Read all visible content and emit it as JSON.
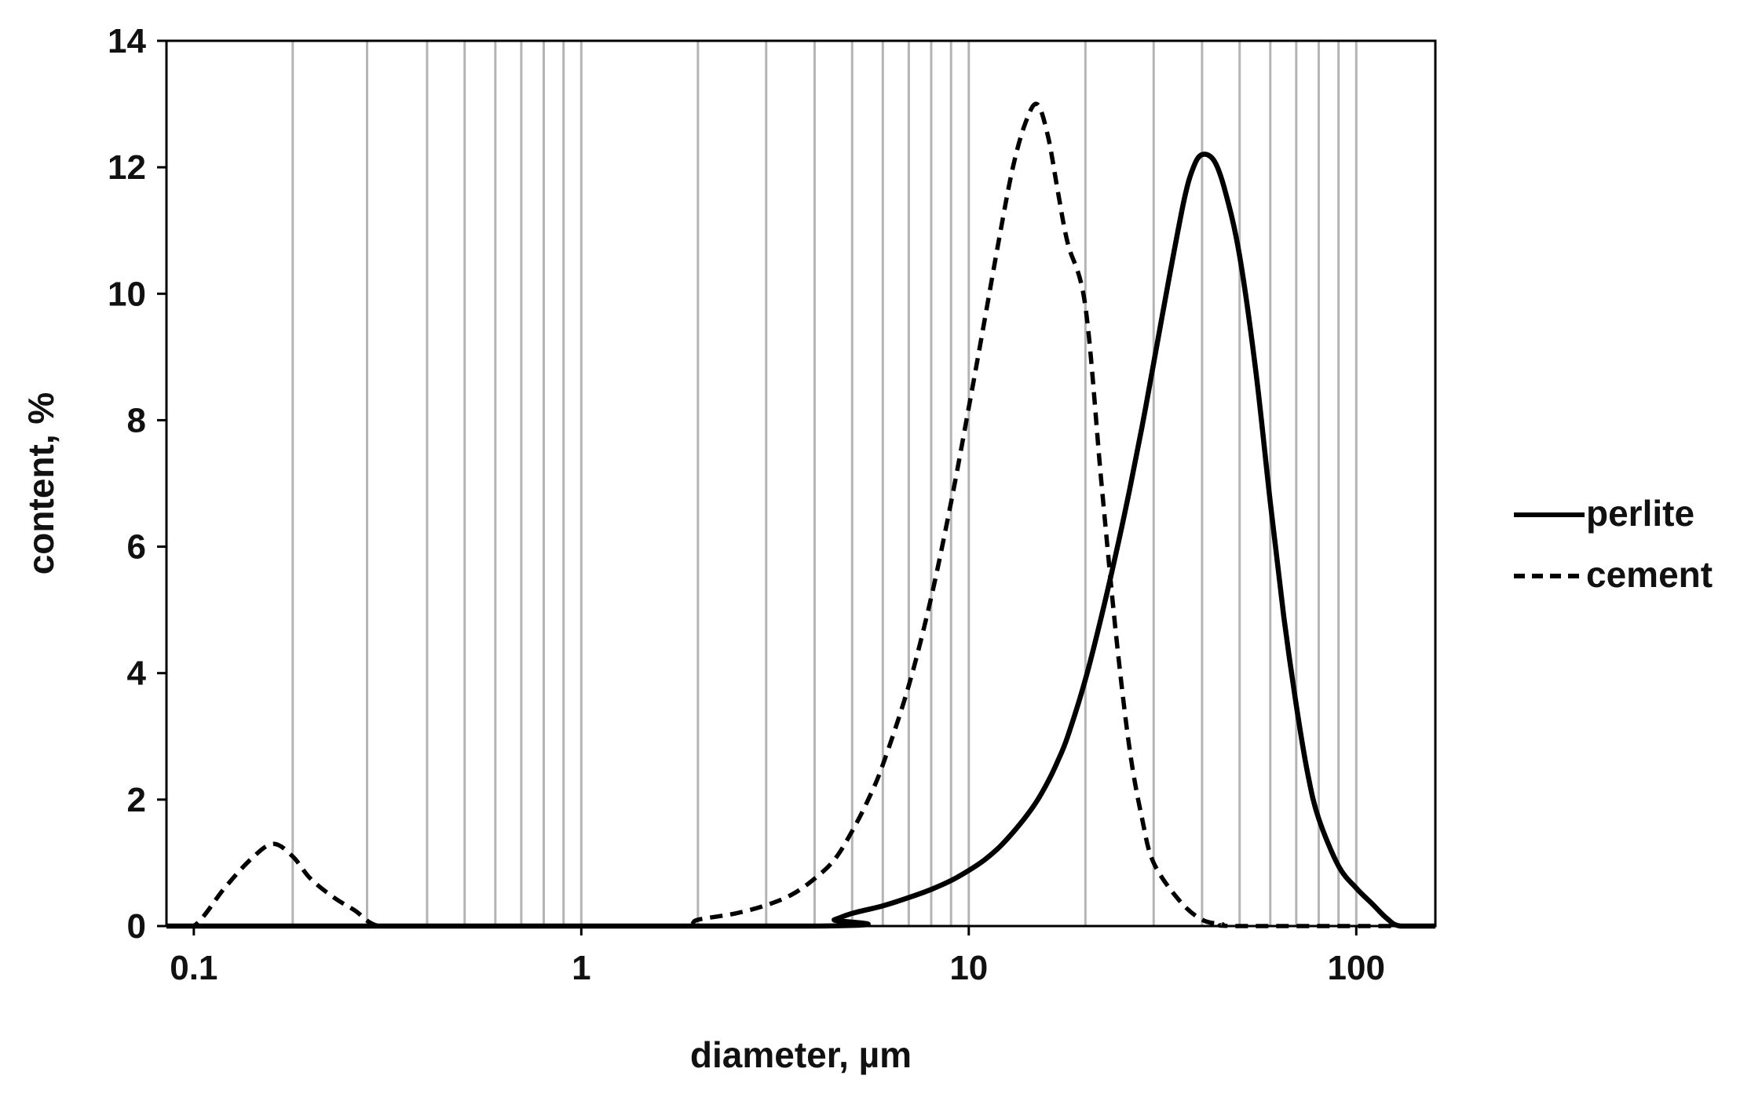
{
  "chart_data": {
    "type": "line",
    "title": "",
    "xlabel": "diameter, µm",
    "ylabel": "content, %",
    "x_scale": "log",
    "xlim": [
      0.085,
      160
    ],
    "ylim": [
      0,
      14
    ],
    "x_ticks": [
      0.1,
      1,
      10,
      100
    ],
    "x_tick_labels": [
      "0.1",
      "1",
      "10",
      "100"
    ],
    "y_ticks": [
      0,
      2,
      4,
      6,
      8,
      10,
      12,
      14
    ],
    "y_tick_labels": [
      "0",
      "2",
      "4",
      "6",
      "8",
      "10",
      "12",
      "14"
    ],
    "x_grid_lines": [
      0.18,
      0.28,
      0.4,
      0.5,
      0.6,
      0.7,
      0.8,
      0.9,
      1,
      2,
      3,
      4,
      5,
      6,
      7,
      8,
      9,
      10,
      20,
      30,
      40,
      50,
      60,
      70,
      80,
      90,
      100
    ],
    "grid": "vertical",
    "legend_position": "right",
    "series": [
      {
        "name": "perlite",
        "style": "solid",
        "color": "#000000",
        "x": [
          0.085,
          4.0,
          4.5,
          5.0,
          6.0,
          7.0,
          8.0,
          9.0,
          10.0,
          11.0,
          12.0,
          13.0,
          14.0,
          15.0,
          16.0,
          17.0,
          18.0,
          20.0,
          22.0,
          24.0,
          26.0,
          28.0,
          30.0,
          33.0,
          36.0,
          38.0,
          40.0,
          43.0,
          46.0,
          50.0,
          55.0,
          60.0,
          65.0,
          70.0,
          75.0,
          80.0,
          90.0,
          100.0,
          110.0,
          120.0,
          130.0,
          160.0
        ],
        "y": [
          0,
          0,
          0.1,
          0.2,
          0.32,
          0.45,
          0.58,
          0.72,
          0.88,
          1.05,
          1.25,
          1.48,
          1.72,
          1.98,
          2.28,
          2.62,
          3.0,
          3.9,
          4.9,
          5.9,
          6.9,
          7.9,
          8.9,
          10.3,
          11.5,
          12.0,
          12.2,
          12.1,
          11.6,
          10.6,
          8.8,
          6.7,
          4.9,
          3.5,
          2.4,
          1.7,
          0.95,
          0.6,
          0.35,
          0.12,
          0,
          0
        ]
      },
      {
        "name": "cement",
        "style": "dashed",
        "color": "#000000",
        "x": [
          0.085,
          0.1,
          0.12,
          0.14,
          0.16,
          0.18,
          0.2,
          0.23,
          0.26,
          0.3,
          0.4,
          1.0,
          1.8,
          2.0,
          2.5,
          3.0,
          3.5,
          4.0,
          4.5,
          5.0,
          5.5,
          6.0,
          7.0,
          8.0,
          9.0,
          10.0,
          11.0,
          12.0,
          13.0,
          14.0,
          15.0,
          16.0,
          17.0,
          18.0,
          20.0,
          22.0,
          24.0,
          26.0,
          28.0,
          30.0,
          35.0,
          40.0,
          45.0,
          50.0,
          160.0
        ],
        "y": [
          0,
          0,
          0.6,
          1.05,
          1.3,
          1.1,
          0.75,
          0.45,
          0.25,
          0,
          0,
          0,
          0,
          0.1,
          0.2,
          0.33,
          0.5,
          0.75,
          1.05,
          1.5,
          2.0,
          2.55,
          3.8,
          5.2,
          6.7,
          8.2,
          9.6,
          10.9,
          12.0,
          12.7,
          13.0,
          12.5,
          11.6,
          10.8,
          9.8,
          7.0,
          4.6,
          2.8,
          1.7,
          1.0,
          0.4,
          0.1,
          0.03,
          0,
          0
        ]
      }
    ]
  }
}
